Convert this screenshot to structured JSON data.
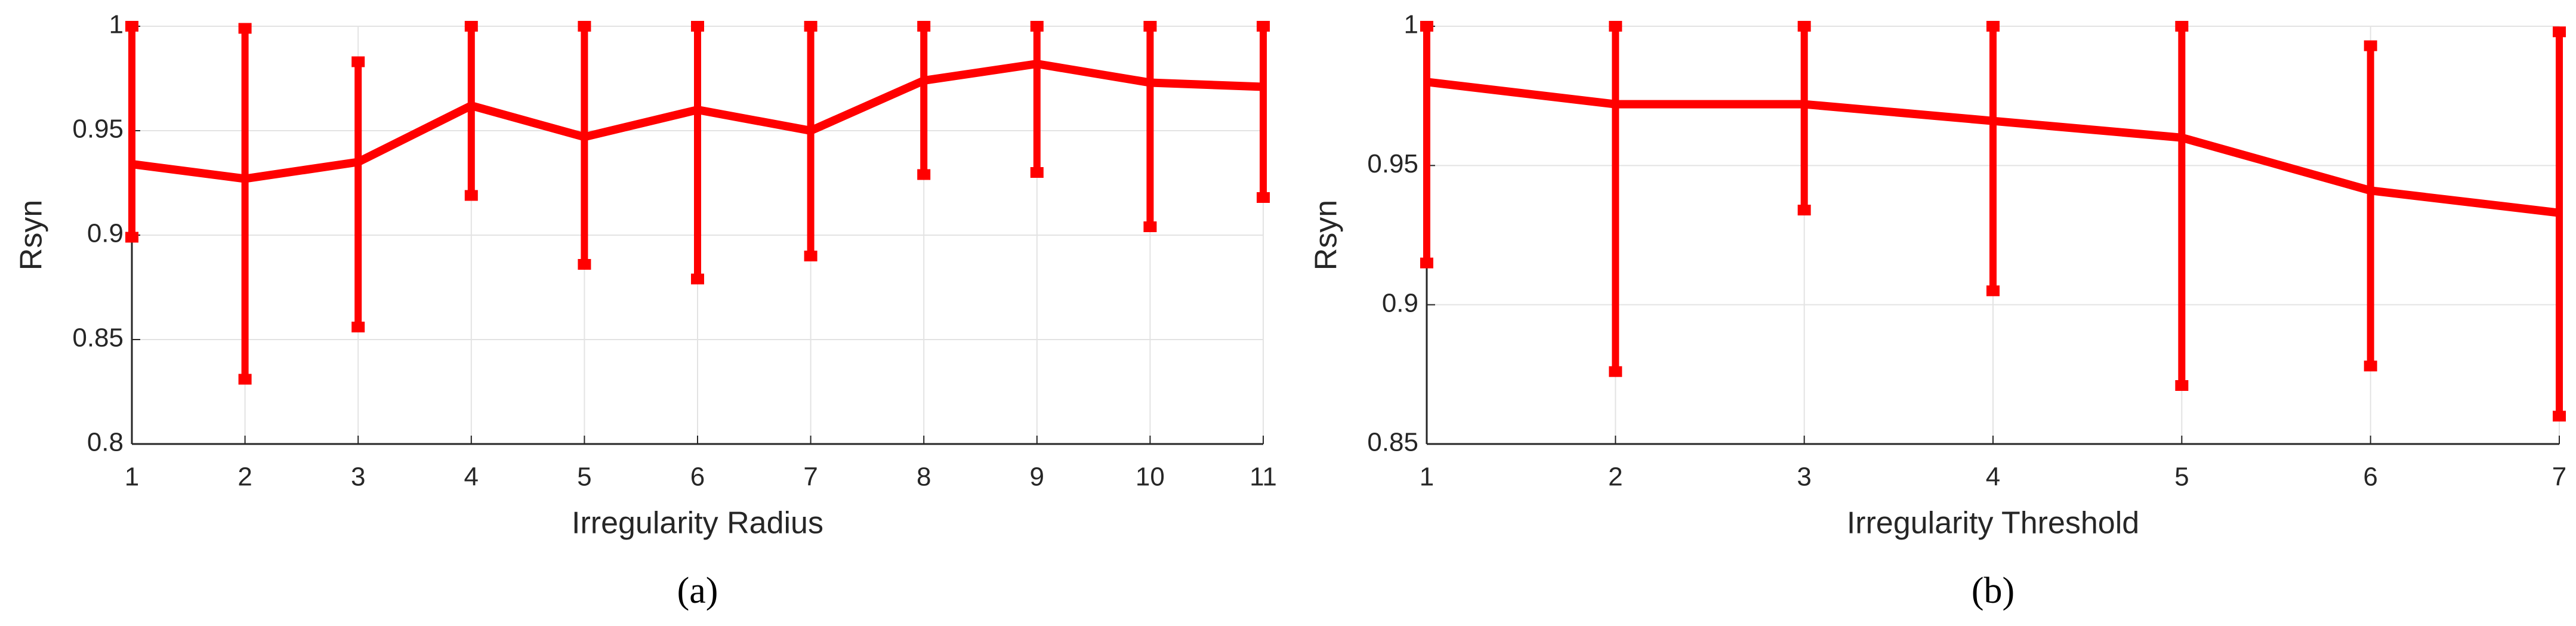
{
  "chart_data": [
    {
      "type": "line",
      "xlabel": "Irregularity Radius",
      "ylabel": "Rsyn",
      "label": "(a)",
      "color": "#ff0000",
      "grid": true,
      "x": [
        1,
        2,
        3,
        4,
        5,
        6,
        7,
        8,
        9,
        10,
        11
      ],
      "values": [
        0.934,
        0.927,
        0.935,
        0.962,
        0.947,
        0.96,
        0.95,
        0.974,
        0.982,
        0.973,
        0.971
      ],
      "lower": [
        0.899,
        0.831,
        0.856,
        0.919,
        0.886,
        0.879,
        0.89,
        0.929,
        0.93,
        0.904,
        0.918
      ],
      "upper": [
        1.0,
        0.999,
        0.983,
        1.0,
        1.0,
        1.0,
        1.0,
        1.0,
        1.0,
        1.0,
        1.0
      ],
      "xlim": [
        1,
        11
      ],
      "xticks": [
        1,
        2,
        3,
        4,
        5,
        6,
        7,
        8,
        9,
        10,
        11
      ],
      "ylim": [
        0.8,
        1
      ],
      "yticks": [
        0.8,
        0.85,
        0.9,
        0.95,
        1
      ]
    },
    {
      "type": "line",
      "xlabel": "Irregularity Threshold",
      "ylabel": "Rsyn",
      "label": "(b)",
      "color": "#ff0000",
      "grid": true,
      "x": [
        1,
        2,
        3,
        4,
        5,
        6,
        7
      ],
      "values": [
        0.98,
        0.972,
        0.972,
        0.966,
        0.96,
        0.941,
        0.933
      ],
      "lower": [
        0.915,
        0.876,
        0.934,
        0.905,
        0.871,
        0.878,
        0.86
      ],
      "upper": [
        1.0,
        1.0,
        1.0,
        1.0,
        1.0,
        0.993,
        0.998
      ],
      "xlim": [
        1,
        7
      ],
      "xticks": [
        1,
        2,
        3,
        4,
        5,
        6,
        7
      ],
      "ylim": [
        0.85,
        1
      ],
      "yticks": [
        0.85,
        0.9,
        0.95,
        1
      ]
    }
  ]
}
